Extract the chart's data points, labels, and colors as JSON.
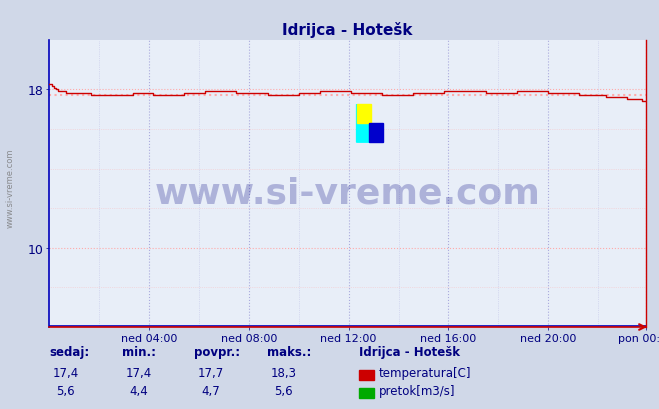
{
  "title": "Idrijca - Hotešk",
  "title_color": "#000080",
  "bg_color": "#d0d8e8",
  "plot_bg_color": "#e8eef8",
  "grid_color_h": "#ffaaaa",
  "grid_color_v": "#aaaadd",
  "ylim_min": 6.0,
  "ylim_max": 20.5,
  "yticks": [
    10,
    18
  ],
  "n_points": 288,
  "temp_color": "#cc0000",
  "temp_avg": 17.7,
  "temp_avg_color": "#ffaaaa",
  "flow_color": "#00aa00",
  "flow_avg": 4.7,
  "flow_avg_color": "#00cc00",
  "blue_baseline": "#0000bb",
  "x_tick_labels": [
    "ned 04:00",
    "ned 08:00",
    "ned 12:00",
    "ned 16:00",
    "ned 20:00",
    "pon 00:00"
  ],
  "x_tick_positions": [
    48,
    96,
    144,
    192,
    240,
    287
  ],
  "temp_min": 17.4,
  "temp_max": 18.3,
  "flow_min": 4.4,
  "flow_max": 5.6,
  "watermark": "www.si-vreme.com",
  "watermark_color": "#000080",
  "watermark_alpha": 0.25,
  "legend_title": "Idrijca - Hotešk",
  "legend_temp": "temperatura[C]",
  "legend_flow": "pretok[m3/s]",
  "table_headers": [
    "sedaj:",
    "min.:",
    "povpr.:",
    "maks.:"
  ],
  "table_temp": [
    "17,4",
    "17,4",
    "17,7",
    "18,3"
  ],
  "table_flow": [
    "5,6",
    "4,4",
    "4,7",
    "5,6"
  ],
  "table_color": "#000080",
  "side_watermark": "www.si-vreme.com",
  "side_watermark_color": "#777777"
}
